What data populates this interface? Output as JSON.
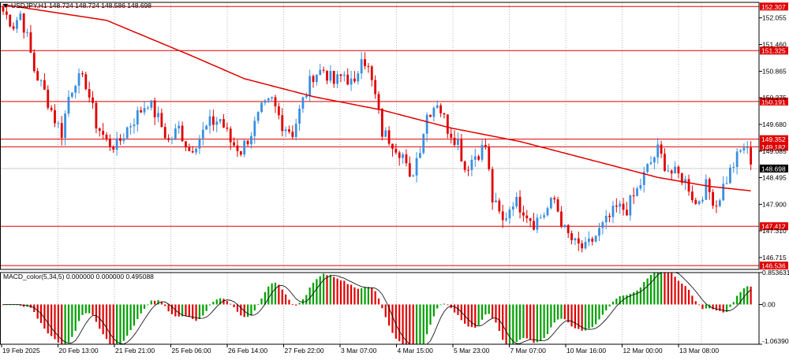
{
  "chart_data": [
    {
      "type": "candlestick",
      "title": "USDJPY,H1",
      "ohlc_label": "148.724 148.724 148.586 148.698",
      "current_price": 148.698,
      "ylim": [
        146.45,
        152.4
      ],
      "y_ticks": [
        152.055,
        151.46,
        150.865,
        150.275,
        149.68,
        149.085,
        148.495,
        147.9,
        147.31,
        146.715
      ],
      "price_levels": [
        152.307,
        151.325,
        150.191,
        149.352,
        149.182,
        147.412,
        146.536
      ],
      "x_tick_labels": [
        "19 Feb 2025",
        "20 Feb 13:00",
        "21 Feb 21:00",
        "25 Feb 06:00",
        "26 Feb 14:00",
        "27 Feb 22:00",
        "3 Mar 07:00",
        "4 Mar 15:00",
        "5 Mar 23:00",
        "7 Mar 07:00",
        "10 Mar 16:00",
        "12 Mar 00:00",
        "13 Mar 08:00"
      ],
      "anchors": [
        [
          0,
          152.2
        ],
        [
          3,
          151.9
        ],
        [
          5,
          152.15
        ],
        [
          7,
          151.6
        ],
        [
          9,
          150.9
        ],
        [
          12,
          150.4
        ],
        [
          15,
          149.8
        ],
        [
          17,
          149.5
        ],
        [
          19,
          150.3
        ],
        [
          21,
          150.7
        ],
        [
          24,
          150.6
        ],
        [
          27,
          149.7
        ],
        [
          30,
          149.3
        ],
        [
          33,
          149.2
        ],
        [
          36,
          149.6
        ],
        [
          39,
          149.9
        ],
        [
          42,
          150.2
        ],
        [
          45,
          149.8
        ],
        [
          48,
          149.3
        ],
        [
          51,
          149.6
        ],
        [
          54,
          149.1
        ],
        [
          57,
          149.4
        ],
        [
          60,
          149.7
        ],
        [
          63,
          149.8
        ],
        [
          66,
          149.3
        ],
        [
          69,
          149.1
        ],
        [
          72,
          149.5
        ],
        [
          75,
          150.0
        ],
        [
          78,
          150.2
        ],
        [
          81,
          149.7
        ],
        [
          84,
          149.5
        ],
        [
          87,
          150.2
        ],
        [
          90,
          150.8
        ],
        [
          93,
          150.9
        ],
        [
          96,
          150.6
        ],
        [
          99,
          150.8
        ],
        [
          102,
          150.5
        ],
        [
          104,
          151.3
        ],
        [
          106,
          150.9
        ],
        [
          108,
          150.3
        ],
        [
          110,
          149.5
        ],
        [
          113,
          149.3
        ],
        [
          116,
          149.0
        ],
        [
          118,
          148.4
        ],
        [
          121,
          149.2
        ],
        [
          123,
          149.9
        ],
        [
          126,
          150.2
        ],
        [
          129,
          149.6
        ],
        [
          132,
          149.3
        ],
        [
          134,
          148.7
        ],
        [
          137,
          149.0
        ],
        [
          140,
          149.2
        ],
        [
          142,
          148.0
        ],
        [
          145,
          147.5
        ],
        [
          148,
          148.0
        ],
        [
          151,
          147.8
        ],
        [
          154,
          147.5
        ],
        [
          157,
          147.7
        ],
        [
          160,
          148.0
        ],
        [
          163,
          147.3
        ],
        [
          166,
          147.0
        ],
        [
          169,
          146.9
        ],
        [
          172,
          147.2
        ],
        [
          175,
          147.5
        ],
        [
          178,
          147.8
        ],
        [
          181,
          147.8
        ],
        [
          184,
          148.2
        ],
        [
          187,
          148.7
        ],
        [
          190,
          149.1
        ],
        [
          192,
          148.8
        ],
        [
          194,
          148.6
        ],
        [
          197,
          148.5
        ],
        [
          199,
          148.3
        ],
        [
          201,
          147.9
        ],
        [
          204,
          148.3
        ],
        [
          207,
          147.9
        ],
        [
          209,
          148.3
        ],
        [
          212,
          148.8
        ],
        [
          215,
          149.2
        ],
        [
          217,
          148.9
        ]
      ],
      "ma_points": [
        [
          0,
          152.35
        ],
        [
          30,
          152.0
        ],
        [
          55,
          151.2
        ],
        [
          70,
          150.7
        ],
        [
          90,
          150.3
        ],
        [
          110,
          150.0
        ],
        [
          130,
          149.6
        ],
        [
          150,
          149.3
        ],
        [
          170,
          148.9
        ],
        [
          190,
          148.5
        ],
        [
          205,
          148.3
        ],
        [
          217,
          148.2
        ]
      ],
      "colors": {
        "bull": "#3a8fe0",
        "bear": "#e00000",
        "ma": "#e00000",
        "level": "#e00000"
      }
    },
    {
      "type": "histogram",
      "title": "MACD_color(5,34,5) 0.000000 0.000000 0.495088",
      "ylim": [
        -1.063905,
        0.853631
      ],
      "y_ticks": [
        0.853631,
        0.0,
        -1.063905
      ],
      "y_tick_labels": [
        "0.853631",
        "0.00",
        "-1.063905"
      ],
      "colors": {
        "up": "#00a000",
        "down": "#e00000",
        "signal": "#000000"
      }
    }
  ]
}
